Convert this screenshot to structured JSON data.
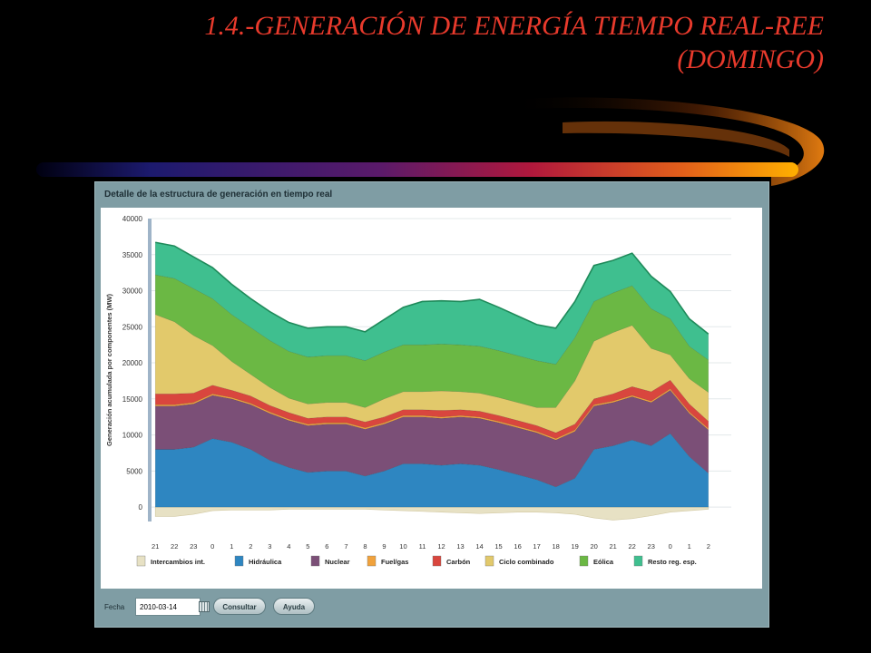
{
  "slide": {
    "title_line1": "1.4.-GENERACIÓN DE ENERGÍA TIEMPO REAL-REE",
    "title_line2": "(DOMINGO)"
  },
  "panel": {
    "header": "Detalle de la estructura de generación en tiempo real",
    "toolbar": {
      "fecha_label": "Fecha",
      "date_value": "2010-03-14",
      "consultar_label": "Consultar",
      "ayuda_label": "Ayuda"
    }
  },
  "chart_data": {
    "type": "area",
    "stacked": true,
    "title": "",
    "ylabel": "Generación acumulada por componentes (MW)",
    "xlabel": "",
    "ylim": [
      0,
      40000
    ],
    "yticks": [
      0,
      5000,
      10000,
      15000,
      20000,
      25000,
      30000,
      35000,
      40000
    ],
    "x_ticks": [
      "21",
      "22",
      "23",
      "0",
      "1",
      "2",
      "3",
      "4",
      "5",
      "6",
      "7",
      "8",
      "9",
      "10",
      "11",
      "12",
      "13",
      "14",
      "15",
      "16",
      "17",
      "18",
      "19",
      "20",
      "21",
      "22",
      "23",
      "0",
      "1",
      "2"
    ],
    "x_hours": [
      21,
      22,
      23,
      24,
      25,
      26,
      27,
      28,
      29,
      30,
      31,
      32,
      33,
      34,
      35,
      36,
      37,
      38,
      39,
      40,
      41,
      42,
      43,
      44,
      45,
      46,
      47,
      48,
      49,
      50
    ],
    "x_range_hours": [
      20.8,
      51.2
    ],
    "grid": true,
    "legend_position": "bottom",
    "series": [
      {
        "name": "Intercambios int.",
        "color": "#e7e1c4",
        "values": [
          -1300,
          -1300,
          -1000,
          -500,
          -400,
          -400,
          -400,
          -300,
          -300,
          -300,
          -300,
          -300,
          -400,
          -500,
          -600,
          -700,
          -800,
          -900,
          -800,
          -700,
          -700,
          -800,
          -1000,
          -1500,
          -1800,
          -1600,
          -1200,
          -700,
          -500,
          -300
        ]
      },
      {
        "name": "Hidráulica",
        "color": "#2e86c1",
        "values": [
          8000,
          8000,
          8300,
          9500,
          9000,
          8000,
          6500,
          5500,
          4800,
          5000,
          5000,
          4300,
          5000,
          6000,
          6000,
          5800,
          6000,
          5800,
          5200,
          4500,
          3800,
          2800,
          4000,
          8000,
          8500,
          9300,
          8500,
          10200,
          7000,
          4700
        ]
      },
      {
        "name": "Nuclear",
        "color": "#7b4f77",
        "values": [
          6000,
          6000,
          6000,
          6000,
          6000,
          6200,
          6500,
          6500,
          6500,
          6500,
          6500,
          6500,
          6500,
          6500,
          6500,
          6500,
          6500,
          6500,
          6500,
          6500,
          6500,
          6500,
          6500,
          6000,
          6000,
          6000,
          6000,
          6000,
          6000,
          6000
        ]
      },
      {
        "name": "Fuel/gas",
        "color": "#f1a23c",
        "values": [
          200,
          200,
          200,
          200,
          200,
          200,
          200,
          200,
          200,
          200,
          200,
          200,
          200,
          200,
          200,
          200,
          200,
          200,
          200,
          200,
          200,
          200,
          200,
          200,
          200,
          200,
          200,
          200,
          200,
          200
        ]
      },
      {
        "name": "Carbón",
        "color": "#d9463e",
        "values": [
          1500,
          1500,
          1300,
          1200,
          1000,
          1000,
          900,
          900,
          800,
          800,
          800,
          800,
          800,
          800,
          800,
          900,
          800,
          800,
          800,
          800,
          800,
          800,
          800,
          800,
          1000,
          1200,
          1300,
          1200,
          1100,
          1000
        ]
      },
      {
        "name": "Ciclo combinado",
        "color": "#e2c96b",
        "values": [
          11000,
          10000,
          8000,
          5500,
          4000,
          3000,
          2500,
          2000,
          2000,
          2000,
          2000,
          2000,
          2500,
          2500,
          2500,
          2700,
          2500,
          2500,
          2500,
          2500,
          2500,
          3500,
          6000,
          8000,
          8500,
          8500,
          6000,
          3500,
          3500,
          4000
        ]
      },
      {
        "name": "Eólica",
        "color": "#6bb844",
        "values": [
          5500,
          6000,
          6500,
          6500,
          6500,
          6500,
          6500,
          6500,
          6500,
          6500,
          6500,
          6500,
          6500,
          6500,
          6500,
          6500,
          6500,
          6500,
          6500,
          6500,
          6500,
          6000,
          6000,
          5500,
          5500,
          5500,
          5500,
          5000,
          4500,
          4500
        ]
      },
      {
        "name": "Resto reg. esp.",
        "color": "#3fbf8f",
        "values": [
          4500,
          4500,
          4400,
          4300,
          4200,
          4000,
          4000,
          4000,
          4000,
          4000,
          4000,
          4000,
          4500,
          5200,
          6000,
          6000,
          6000,
          6500,
          6000,
          5500,
          5000,
          5000,
          5000,
          5000,
          4500,
          4500,
          4500,
          3800,
          3800,
          3600
        ]
      }
    ]
  }
}
